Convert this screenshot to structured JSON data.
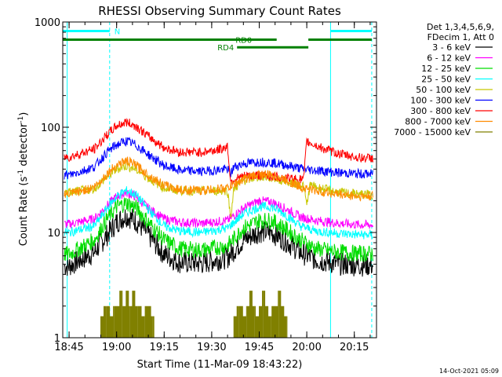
{
  "chart_data": {
    "type": "line",
    "title": "RHESSI Observing Summary Count Rates",
    "xlabel": "Start Time (11-Mar-09 18:43:22)",
    "ylabel_main": "Count Rate (s",
    "ylabel_sup1": "-1",
    "ylabel_mid": " detector",
    "ylabel_sup2": "-1",
    "ylabel_end": ")",
    "yscale": "log",
    "ylim": [
      1,
      1000
    ],
    "xlim_minutes": [
      -2,
      97
    ],
    "x_ticks": [
      {
        "label": "18:45",
        "minute": 0
      },
      {
        "label": "19:00",
        "minute": 15
      },
      {
        "label": "19:15",
        "minute": 30
      },
      {
        "label": "19:30",
        "minute": 45
      },
      {
        "label": "19:45",
        "minute": 60
      },
      {
        "label": "20:00",
        "minute": 75
      },
      {
        "label": "20:15",
        "minute": 90
      }
    ],
    "y_ticks": [
      {
        "label": "1",
        "value": 1
      },
      {
        "label": "10",
        "value": 10
      },
      {
        "label": "100",
        "value": 100
      },
      {
        "label": "1000",
        "value": 1000
      }
    ],
    "legend_header": [
      "Det 1,3,4,5,6,9,",
      "FDecim 1, Att 0"
    ],
    "legend_placement": "right",
    "series": [
      {
        "name": "3 - 6 keV",
        "color": "#000000",
        "points": [
          [
            0,
            4.8
          ],
          [
            8,
            6.5
          ],
          [
            12,
            9.5
          ],
          [
            15,
            12.5
          ],
          [
            18,
            14.5
          ],
          [
            21,
            13
          ],
          [
            25,
            9.5
          ],
          [
            30,
            6.2
          ],
          [
            35,
            5.2
          ],
          [
            42,
            5.1
          ],
          [
            50,
            5.8
          ],
          [
            55,
            8.5
          ],
          [
            60,
            10.2
          ],
          [
            64,
            10
          ],
          [
            68,
            8.5
          ],
          [
            73,
            6.5
          ],
          [
            78,
            5.5
          ],
          [
            85,
            5
          ],
          [
            92,
            4.9
          ]
        ]
      },
      {
        "name": "6 - 12 keV",
        "color": "#ff00ff",
        "points": [
          [
            0,
            12
          ],
          [
            8,
            13.5
          ],
          [
            12,
            18
          ],
          [
            15,
            22
          ],
          [
            18,
            24
          ],
          [
            21,
            22
          ],
          [
            25,
            17
          ],
          [
            30,
            13.5
          ],
          [
            35,
            12.5
          ],
          [
            42,
            12.2
          ],
          [
            50,
            13
          ],
          [
            55,
            17
          ],
          [
            60,
            20
          ],
          [
            64,
            19.5
          ],
          [
            68,
            17
          ],
          [
            73,
            14
          ],
          [
            78,
            13
          ],
          [
            85,
            12.2
          ],
          [
            92,
            11.8
          ]
        ]
      },
      {
        "name": "12 - 25 keV",
        "color": "#00dd00",
        "points": [
          [
            0,
            6.2
          ],
          [
            8,
            8.5
          ],
          [
            12,
            13.5
          ],
          [
            15,
            17.5
          ],
          [
            18,
            19
          ],
          [
            21,
            17.5
          ],
          [
            25,
            12.5
          ],
          [
            30,
            8.5
          ],
          [
            35,
            7
          ],
          [
            42,
            6.8
          ],
          [
            50,
            7.5
          ],
          [
            55,
            11
          ],
          [
            60,
            13
          ],
          [
            64,
            13
          ],
          [
            68,
            11
          ],
          [
            73,
            8.5
          ],
          [
            78,
            7
          ],
          [
            85,
            6.5
          ],
          [
            92,
            6.3
          ]
        ]
      },
      {
        "name": "25 - 50 keV",
        "color": "#00ffff",
        "points": [
          [
            0,
            10
          ],
          [
            8,
            11.5
          ],
          [
            12,
            17
          ],
          [
            15,
            22
          ],
          [
            18,
            25
          ],
          [
            21,
            23
          ],
          [
            25,
            16.5
          ],
          [
            30,
            11.5
          ],
          [
            35,
            10.3
          ],
          [
            42,
            10
          ],
          [
            50,
            11
          ],
          [
            55,
            15
          ],
          [
            60,
            17.5
          ],
          [
            64,
            17.5
          ],
          [
            68,
            15
          ],
          [
            73,
            11.5
          ],
          [
            78,
            10.3
          ],
          [
            85,
            9.8
          ],
          [
            92,
            9.5
          ]
        ]
      },
      {
        "name": "50 - 100 keV",
        "color": "#c8c800",
        "points": [
          [
            0,
            24
          ],
          [
            8,
            26
          ],
          [
            12,
            34
          ],
          [
            15,
            40
          ],
          [
            18,
            43
          ],
          [
            21,
            40
          ],
          [
            25,
            33
          ],
          [
            30,
            26.5
          ],
          [
            35,
            25
          ],
          [
            42,
            24.8
          ],
          [
            50,
            25
          ],
          [
            51,
            14
          ],
          [
            52,
            26
          ],
          [
            55,
            31
          ],
          [
            60,
            34
          ],
          [
            64,
            33
          ],
          [
            68,
            31
          ],
          [
            74,
            28
          ],
          [
            75,
            18
          ],
          [
            76,
            28
          ],
          [
            80,
            26
          ],
          [
            85,
            24
          ],
          [
            92,
            23
          ]
        ]
      },
      {
        "name": "100 - 300 keV",
        "color": "#0000ff",
        "points": [
          [
            0,
            35
          ],
          [
            8,
            42
          ],
          [
            12,
            58
          ],
          [
            15,
            68
          ],
          [
            18,
            74
          ],
          [
            21,
            68
          ],
          [
            25,
            55
          ],
          [
            30,
            43
          ],
          [
            35,
            39
          ],
          [
            42,
            38
          ],
          [
            50,
            40
          ],
          [
            51,
            36
          ],
          [
            52,
            42
          ],
          [
            55,
            45
          ],
          [
            60,
            47
          ],
          [
            64,
            46
          ],
          [
            68,
            44
          ],
          [
            74,
            40
          ],
          [
            78,
            39
          ],
          [
            85,
            37
          ],
          [
            92,
            36
          ]
        ]
      },
      {
        "name": "300 - 800 keV",
        "color": "#ff0000",
        "points": [
          [
            0,
            52
          ],
          [
            8,
            62
          ],
          [
            12,
            85
          ],
          [
            15,
            103
          ],
          [
            18,
            112
          ],
          [
            21,
            103
          ],
          [
            25,
            82
          ],
          [
            30,
            64
          ],
          [
            35,
            58
          ],
          [
            42,
            58
          ],
          [
            48,
            62
          ],
          [
            50,
            66
          ],
          [
            51,
            30
          ],
          [
            52,
            32
          ],
          [
            55,
            34
          ],
          [
            60,
            35
          ],
          [
            64,
            34
          ],
          [
            68,
            33
          ],
          [
            73,
            32
          ],
          [
            74,
            32
          ],
          [
            75,
            73
          ],
          [
            80,
            63
          ],
          [
            85,
            56
          ],
          [
            92,
            51
          ]
        ]
      },
      {
        "name": "800 - 7000 keV",
        "color": "#ff8c00",
        "points": [
          [
            0,
            23
          ],
          [
            8,
            27
          ],
          [
            12,
            36
          ],
          [
            15,
            44
          ],
          [
            18,
            48
          ],
          [
            21,
            44
          ],
          [
            25,
            35
          ],
          [
            30,
            28
          ],
          [
            35,
            25.5
          ],
          [
            42,
            25
          ],
          [
            50,
            26.5
          ],
          [
            55,
            32
          ],
          [
            60,
            36
          ],
          [
            64,
            35
          ],
          [
            68,
            32
          ],
          [
            73,
            27
          ],
          [
            78,
            25
          ],
          [
            85,
            23
          ],
          [
            92,
            22
          ]
        ]
      },
      {
        "name": "7000 - 15000 keV",
        "color": "#808000",
        "points": [
          [
            10,
            1
          ],
          [
            11,
            2
          ],
          [
            12,
            2
          ],
          [
            13,
            1
          ],
          [
            14,
            2
          ],
          [
            15,
            2
          ],
          [
            16,
            2.8
          ],
          [
            17,
            2
          ],
          [
            18,
            2.8
          ],
          [
            19,
            2
          ],
          [
            20,
            2.8
          ],
          [
            21,
            2
          ],
          [
            22,
            2
          ],
          [
            23,
            1
          ],
          [
            24,
            2
          ],
          [
            25,
            2
          ],
          [
            26,
            1
          ],
          [
            52,
            1
          ],
          [
            53,
            2
          ],
          [
            54,
            2
          ],
          [
            55,
            1
          ],
          [
            56,
            2
          ],
          [
            57,
            2.8
          ],
          [
            58,
            2
          ],
          [
            59,
            1
          ],
          [
            60,
            2
          ],
          [
            61,
            2.8
          ],
          [
            62,
            2
          ],
          [
            63,
            1
          ],
          [
            64,
            2
          ],
          [
            65,
            2
          ],
          [
            66,
            2.8
          ],
          [
            67,
            2
          ],
          [
            68,
            1
          ]
        ]
      }
    ],
    "flags": [
      {
        "label": "N",
        "color": "#00ffff",
        "value": 820,
        "segments": [
          [
            -2,
            12.8
          ],
          [
            82.5,
            95.5
          ]
        ]
      },
      {
        "label": "RD0",
        "color": "#008000",
        "value": 680,
        "segments": [
          [
            -2,
            65.5
          ],
          [
            75.5,
            95.5
          ]
        ]
      },
      {
        "label": "RD4",
        "color": "#008000",
        "value": 575,
        "segments": [
          [
            53,
            75.5
          ]
        ]
      }
    ],
    "vertical_markers": [
      {
        "minute": -0.6,
        "color": "#00ffff",
        "style": "solid"
      },
      {
        "minute": 12.8,
        "color": "#00ffff",
        "style": "dashed"
      },
      {
        "minute": 82.5,
        "color": "#00ffff",
        "style": "solid"
      },
      {
        "minute": 95.5,
        "color": "#00ffff",
        "style": "dashed"
      }
    ]
  },
  "footer": {
    "timestamp": "14-Oct-2021 05:09"
  }
}
